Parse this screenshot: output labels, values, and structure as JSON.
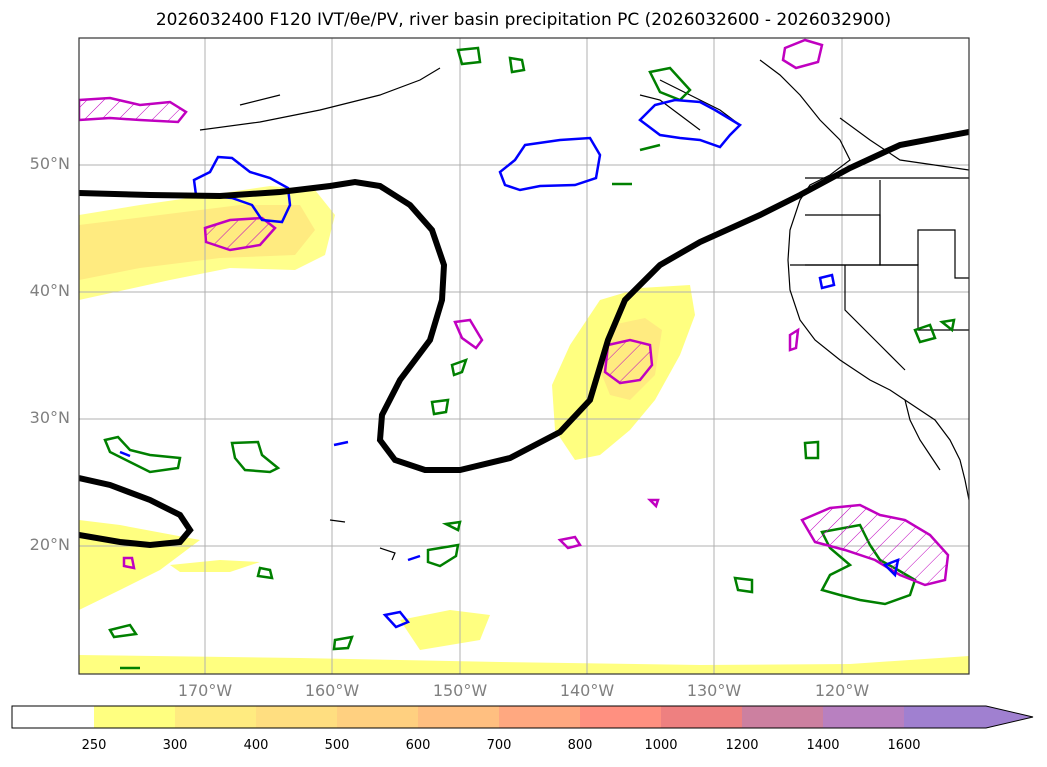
{
  "title": "2026032400 F120 IVT/θe/PV, river basin precipitation PC (2026032600 - 2026032900)",
  "map": {
    "lat_labels": [
      "50°N",
      "40°N",
      "30°N",
      "20°N"
    ],
    "lon_labels": [
      "170°W",
      "160°W",
      "150°W",
      "140°W",
      "130°W",
      "120°W"
    ],
    "contour_colors": {
      "theta_e": "#000000",
      "pv_low": "#0000ff",
      "precip": "#008000",
      "pv_high": "#c000c0"
    }
  },
  "colorbar": {
    "labels": [
      "250",
      "300",
      "400",
      "500",
      "600",
      "700",
      "800",
      "1000",
      "1200",
      "1400",
      "1600"
    ],
    "colors": [
      "#ffffff",
      "#ffff80",
      "#ffeb80",
      "#ffde80",
      "#ffd080",
      "#ffbf80",
      "#ffa880",
      "#ff9080",
      "#ee8080",
      "#cc80a0",
      "#b880c0",
      "#a080d0"
    ]
  }
}
